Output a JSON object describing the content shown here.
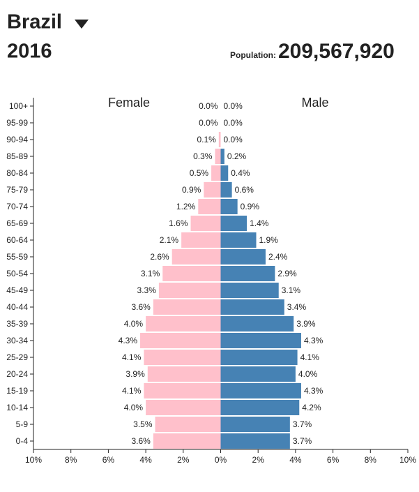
{
  "header": {
    "country": "Brazil",
    "year": "2016",
    "population_label": "Population:",
    "population": "209,567,920"
  },
  "chart_data": {
    "type": "pyramid",
    "categories": [
      "0-4",
      "5-9",
      "10-14",
      "15-19",
      "20-24",
      "25-29",
      "30-34",
      "35-39",
      "40-44",
      "45-49",
      "50-54",
      "55-59",
      "60-64",
      "65-69",
      "70-74",
      "75-79",
      "80-84",
      "85-89",
      "90-94",
      "95-99",
      "100+"
    ],
    "series": [
      {
        "name": "Female",
        "color": "#ffc0cb",
        "side": "left",
        "values": [
          3.6,
          3.5,
          4.0,
          4.1,
          3.9,
          4.1,
          4.3,
          4.0,
          3.6,
          3.3,
          3.1,
          2.6,
          2.1,
          1.6,
          1.2,
          0.9,
          0.5,
          0.3,
          0.1,
          0.0,
          0.0
        ],
        "value_labels": [
          "3.6%",
          "3.5%",
          "4.0%",
          "4.1%",
          "3.9%",
          "4.1%",
          "4.3%",
          "4.0%",
          "3.6%",
          "3.3%",
          "3.1%",
          "2.6%",
          "2.1%",
          "1.6%",
          "1.2%",
          "0.9%",
          "0.5%",
          "0.3%",
          "0.1%",
          "0.0%",
          "0.0%"
        ]
      },
      {
        "name": "Male",
        "color": "#4682b4",
        "side": "right",
        "values": [
          3.7,
          3.7,
          4.2,
          4.3,
          4.0,
          4.1,
          4.3,
          3.9,
          3.4,
          3.1,
          2.9,
          2.4,
          1.9,
          1.4,
          0.9,
          0.6,
          0.4,
          0.2,
          0.0,
          0.0,
          0.0
        ],
        "value_labels": [
          "3.7%",
          "3.7%",
          "4.2%",
          "4.3%",
          "4.0%",
          "4.1%",
          "4.3%",
          "3.9%",
          "3.4%",
          "3.1%",
          "2.9%",
          "2.4%",
          "1.9%",
          "1.4%",
          "0.9%",
          "0.6%",
          "0.4%",
          "0.2%",
          "0.0%",
          "0.0%",
          "0.0%"
        ]
      }
    ],
    "xlim": [
      -10,
      10
    ],
    "xticks": [
      {
        "value": -10,
        "label": "10%"
      },
      {
        "value": -8,
        "label": "8%"
      },
      {
        "value": -6,
        "label": "6%"
      },
      {
        "value": -4,
        "label": "4%"
      },
      {
        "value": -2,
        "label": "2%"
      },
      {
        "value": 0,
        "label": "0%"
      },
      {
        "value": 2,
        "label": "2%"
      },
      {
        "value": 4,
        "label": "4%"
      },
      {
        "value": 6,
        "label": "6%"
      },
      {
        "value": 8,
        "label": "8%"
      },
      {
        "value": 10,
        "label": "10%"
      }
    ]
  }
}
